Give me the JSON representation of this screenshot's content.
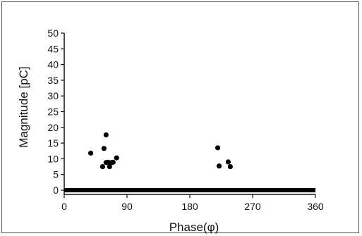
{
  "chart_data": {
    "type": "scatter",
    "xlabel": "Phase(φ)",
    "ylabel": "Magnitude [pC]",
    "xlim": [
      0,
      360
    ],
    "ylim": [
      0,
      50
    ],
    "x_ticks": [
      0,
      90,
      180,
      270,
      360
    ],
    "y_ticks": [
      0,
      5,
      10,
      15,
      20,
      25,
      30,
      35,
      40,
      45,
      50
    ],
    "grid": false,
    "legend": "none",
    "series": [
      {
        "points": [
          {
            "x": 38,
            "y": 11.8
          },
          {
            "x": 55,
            "y": 7.5
          },
          {
            "x": 57,
            "y": 13.3
          },
          {
            "x": 60,
            "y": 17.6
          },
          {
            "x": 60,
            "y": 8.8
          },
          {
            "x": 63,
            "y": 8.9
          },
          {
            "x": 65,
            "y": 7.5
          },
          {
            "x": 68,
            "y": 8.8
          },
          {
            "x": 70,
            "y": 8.9
          },
          {
            "x": 75,
            "y": 10.3
          },
          {
            "x": 220,
            "y": 13.5
          },
          {
            "x": 222,
            "y": 7.7
          },
          {
            "x": 235,
            "y": 9.0
          },
          {
            "x": 238,
            "y": 7.5
          }
        ]
      }
    ],
    "baseline": {
      "x_from": 0,
      "x_to": 360,
      "y": 0
    },
    "colors": {
      "points": "#000000",
      "axis": "#111111",
      "baseline": "#000000"
    }
  }
}
